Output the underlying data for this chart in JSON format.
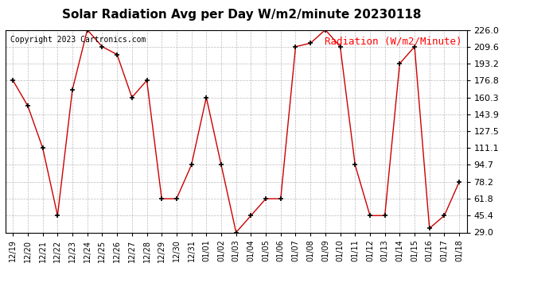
{
  "title": "Solar Radiation Avg per Day W/m2/minute 20230118",
  "copyright": "Copyright 2023 Cartronics.com",
  "legend_label": "Radiation (W/m2/Minute)",
  "ylim": [
    29.0,
    226.0
  ],
  "yticks": [
    29.0,
    45.4,
    61.8,
    78.2,
    94.7,
    111.1,
    127.5,
    143.9,
    160.3,
    176.8,
    193.2,
    209.6,
    226.0
  ],
  "dates": [
    "12/19",
    "12/20",
    "12/21",
    "12/22",
    "12/23",
    "12/24",
    "12/25",
    "12/26",
    "12/27",
    "12/28",
    "12/29",
    "12/30",
    "12/31",
    "01/01",
    "01/02",
    "01/03",
    "01/04",
    "01/05",
    "01/06",
    "01/07",
    "01/08",
    "01/09",
    "01/10",
    "01/11",
    "01/12",
    "01/13",
    "01/14",
    "01/15",
    "01/16",
    "01/17",
    "01/18"
  ],
  "values": [
    176.8,
    152.0,
    111.1,
    45.4,
    168.0,
    226.0,
    209.6,
    202.0,
    160.3,
    176.8,
    61.8,
    61.8,
    94.7,
    160.3,
    94.7,
    29.0,
    45.4,
    61.8,
    61.8,
    209.6,
    213.0,
    226.0,
    209.6,
    94.7,
    45.4,
    45.4,
    193.2,
    209.6,
    33.0,
    45.4,
    78.2
  ],
  "line_color": "#cc0000",
  "marker": "+",
  "marker_color": "#000000",
  "grid_color": "#aaaaaa",
  "background_color": "#ffffff",
  "title_fontsize": 11,
  "tick_fontsize": 8,
  "copyright_fontsize": 7,
  "legend_fontsize": 9
}
